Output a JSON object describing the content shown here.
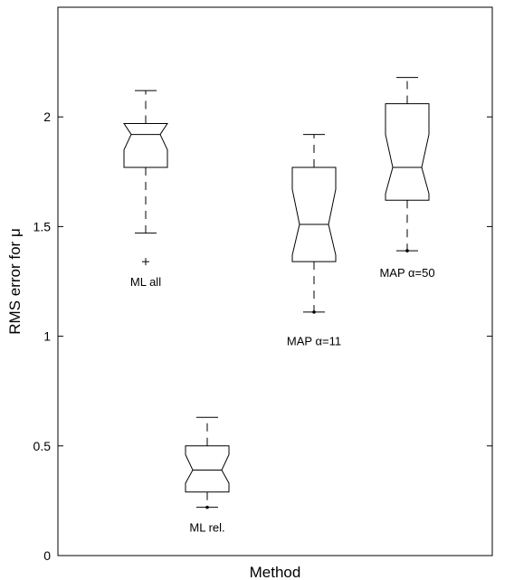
{
  "chart_data": {
    "type": "boxplot",
    "title": "",
    "xlabel": "Method",
    "ylabel": "RMS error for μ",
    "ylim": [
      0,
      2.5
    ],
    "yticks": [
      {
        "value": 0,
        "label": "0"
      },
      {
        "value": 0.5,
        "label": "0.5"
      },
      {
        "value": 1,
        "label": "1"
      },
      {
        "value": 1.5,
        "label": "1.5"
      },
      {
        "value": 2,
        "label": "2"
      }
    ],
    "grid": false,
    "legend": "none",
    "boxes": [
      {
        "label": "ML all",
        "position": 1,
        "whisker_low": 1.47,
        "q1": 1.77,
        "median": 1.92,
        "q3": 1.97,
        "whisker_high": 2.12,
        "notch_low": 1.85,
        "notch_high": 1.97,
        "outliers": [
          1.34
        ],
        "outlier_marker": "plus",
        "label_value": 1.23
      },
      {
        "label": "ML rel.",
        "position": 2,
        "whisker_low": 0.22,
        "q1": 0.29,
        "median": 0.39,
        "q3": 0.5,
        "whisker_high": 0.63,
        "notch_low": 0.33,
        "notch_high": 0.46,
        "outliers": [
          0.22
        ],
        "outlier_marker": "dot",
        "label_value": 0.11
      },
      {
        "label": "MAP α=11",
        "position": 3,
        "whisker_low": 1.11,
        "q1": 1.34,
        "median": 1.51,
        "q3": 1.77,
        "whisker_high": 1.92,
        "notch_low": 1.37,
        "notch_high": 1.67,
        "outliers": [
          1.11
        ],
        "outlier_marker": "dot",
        "label_value": 0.96
      },
      {
        "label": "MAP α=50",
        "position": 4,
        "whisker_low": 1.39,
        "q1": 1.62,
        "median": 1.77,
        "q3": 2.06,
        "whisker_high": 2.18,
        "notch_low": 1.65,
        "notch_high": 1.92,
        "outliers": [
          1.39
        ],
        "outlier_marker": "dot",
        "label_value": 1.27
      }
    ]
  }
}
